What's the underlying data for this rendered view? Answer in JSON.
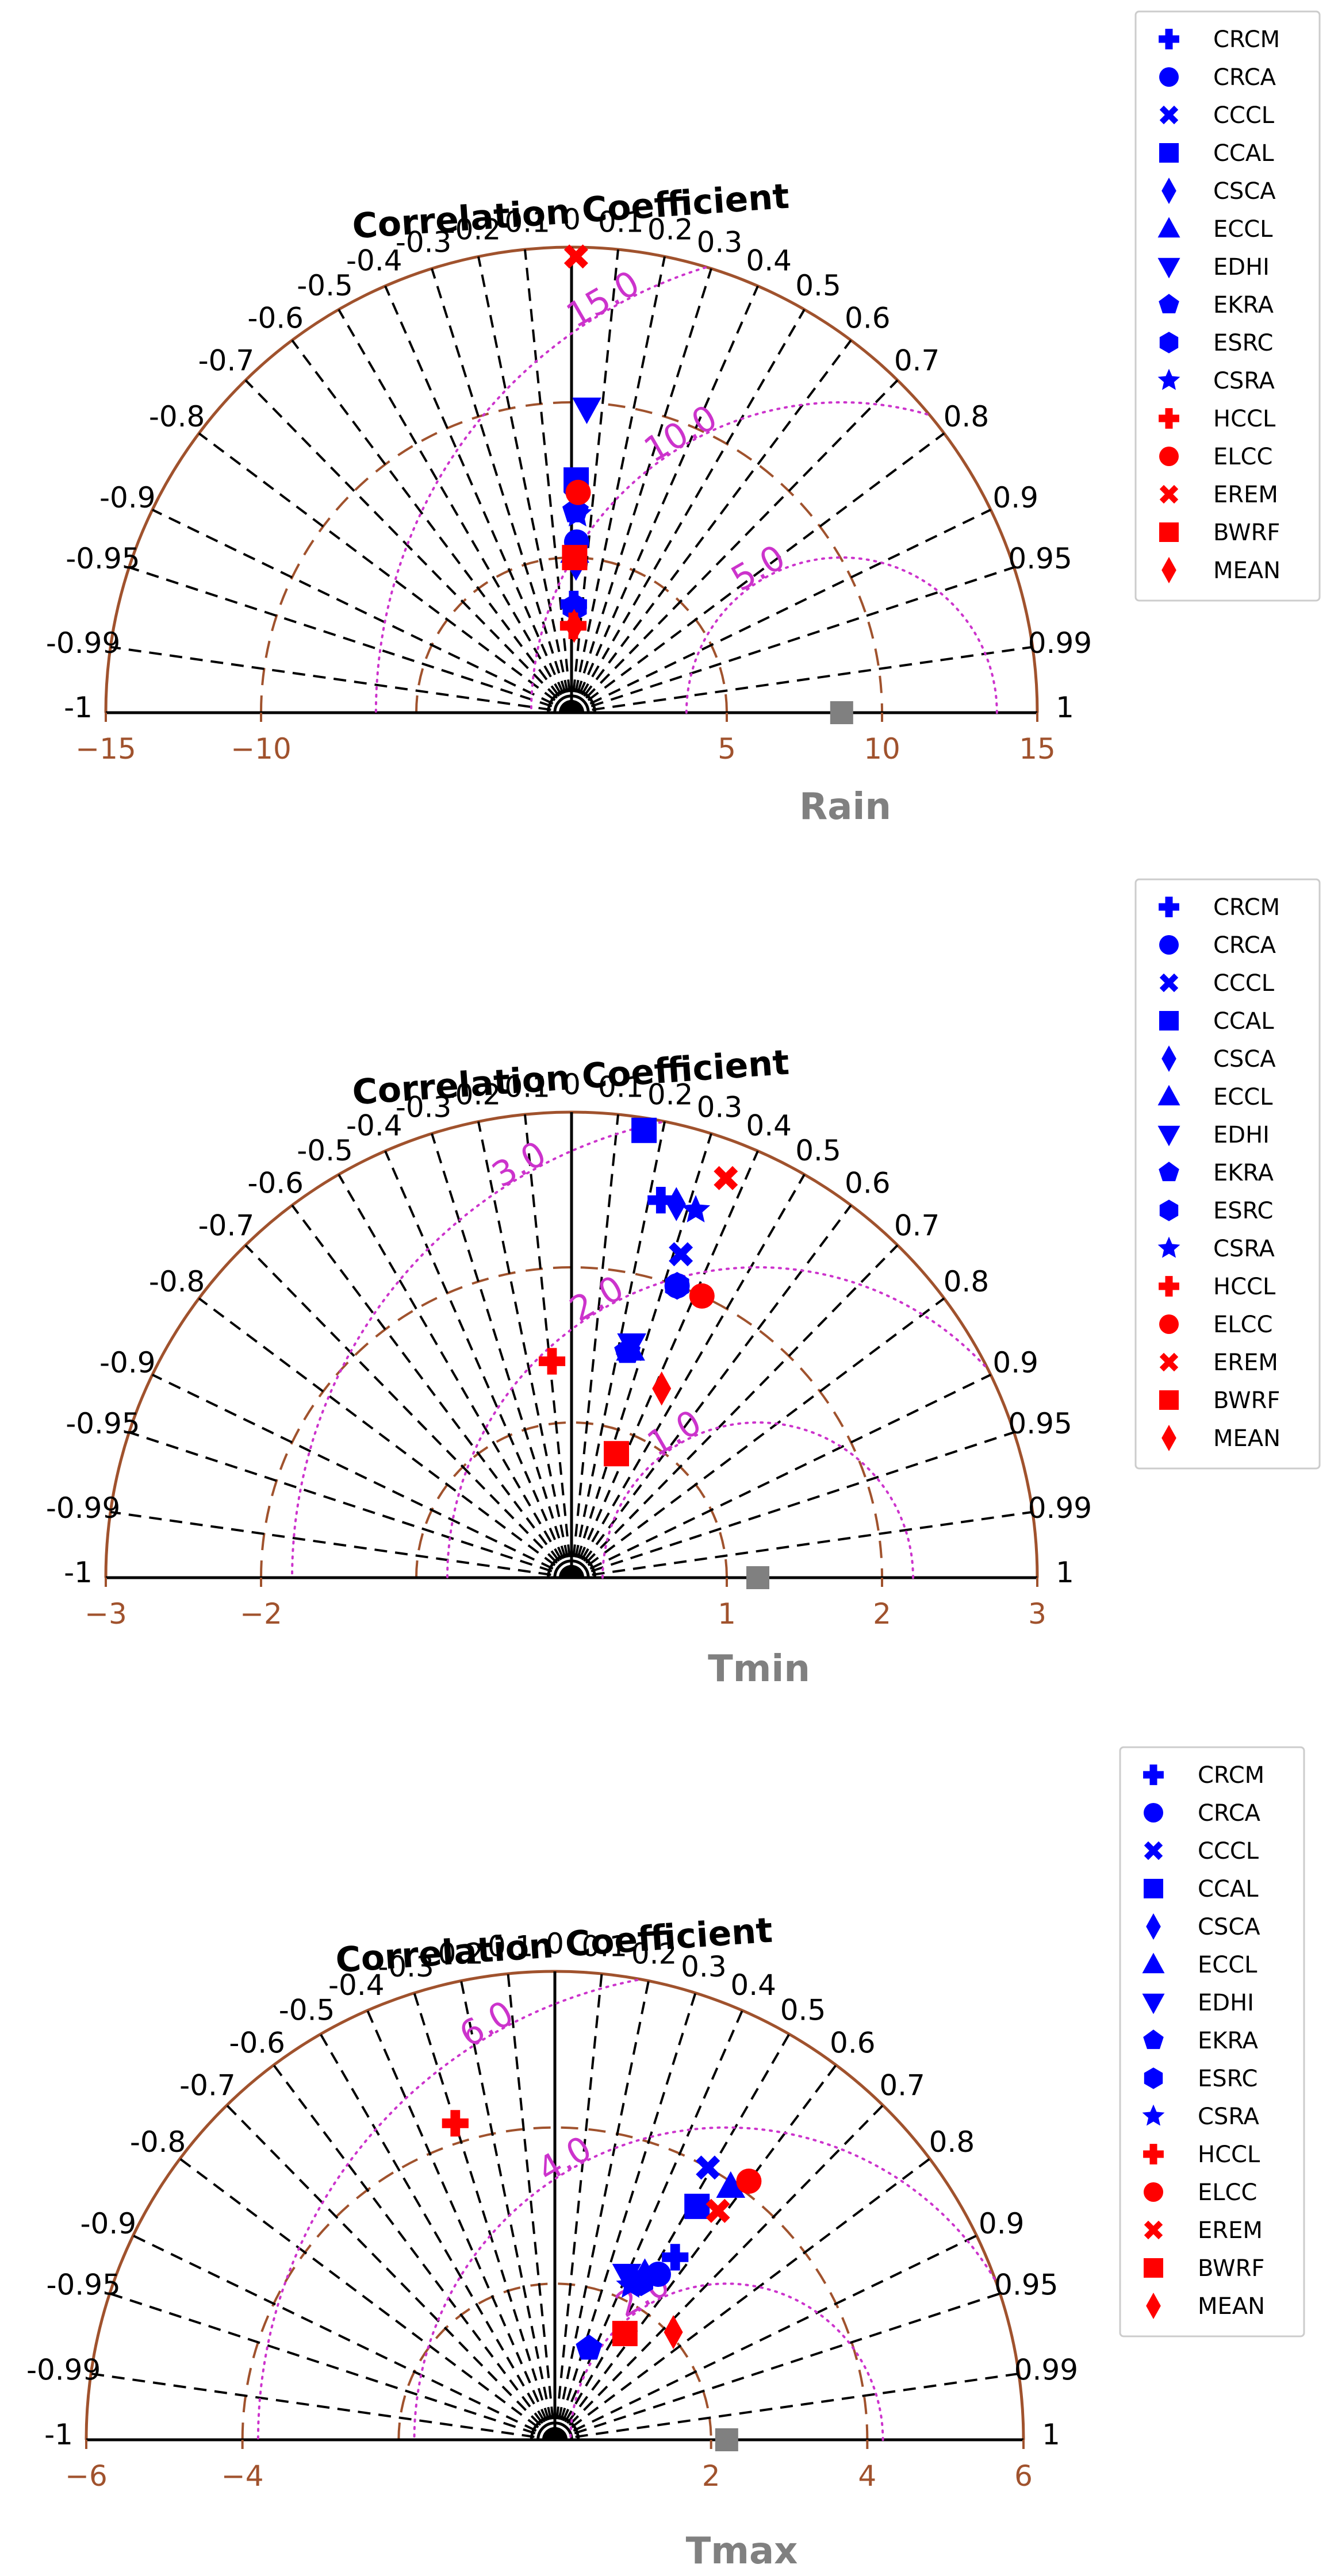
{
  "figure": {
    "corr_title": "Correlation Coefficient",
    "colors": {
      "sd_arc": "#a0522d",
      "rms": "#cc33cc",
      "spoke": "#000000",
      "reference": "#808080",
      "model": "#0000ff",
      "ensemble": "#ff0000"
    },
    "corr_ticks": [
      "0",
      "0.1",
      "0.2",
      "0.3",
      "0.4",
      "0.5",
      "0.6",
      "0.7",
      "0.8",
      "0.9",
      "0.95",
      "0.99",
      "1",
      "-0.1",
      "-0.2",
      "-0.3",
      "-0.4",
      "-0.5",
      "-0.6",
      "-0.7",
      "-0.8",
      "-0.9",
      "-0.95",
      "-0.99",
      "-1"
    ]
  },
  "chart_data": [
    {
      "type": "scatter",
      "subtype": "taylor-diagram",
      "title": "Rain",
      "sd_max": 15,
      "sd_ticks": [
        "−15",
        "−10",
        "5",
        "10",
        "15"
      ],
      "sd_tick_values": [
        -15,
        -10,
        5,
        10,
        15
      ],
      "sd_arcs": [
        5,
        10
      ],
      "reference_sd": 8.7,
      "rms_levels": [
        5,
        10,
        15
      ],
      "rms_labels": [
        "5.0",
        "10.0",
        "15.0"
      ],
      "models": [
        {
          "name": "CRCM",
          "marker": "plus",
          "color": "#0000ff",
          "corr": 0.02,
          "sd": 3.5
        },
        {
          "name": "CRCA",
          "marker": "circle",
          "color": "#0000ff",
          "corr": 0.03,
          "sd": 5.5
        },
        {
          "name": "CCCL",
          "marker": "x",
          "color": "#0000ff",
          "corr": 0.02,
          "sd": 7.3
        },
        {
          "name": "CCAL",
          "marker": "square",
          "color": "#0000ff",
          "corr": 0.02,
          "sd": 7.5
        },
        {
          "name": "CSCA",
          "marker": "diamond",
          "color": "#0000ff",
          "corr": 0.03,
          "sd": 4.8
        },
        {
          "name": "ECCL",
          "marker": "triangle-up",
          "color": "#0000ff",
          "corr": 0.02,
          "sd": 5.2
        },
        {
          "name": "EDHI",
          "marker": "triangle-down",
          "color": "#0000ff",
          "corr": 0.05,
          "sd": 9.8
        },
        {
          "name": "EKRA",
          "marker": "pentagon",
          "color": "#0000ff",
          "corr": 0.02,
          "sd": 6.5
        },
        {
          "name": "ESRC",
          "marker": "hexagon",
          "color": "#0000ff",
          "corr": 0.03,
          "sd": 3.4
        },
        {
          "name": "CSRA",
          "marker": "star",
          "color": "#0000ff",
          "corr": 0.03,
          "sd": 6.4
        },
        {
          "name": "HCCL",
          "marker": "plus",
          "color": "#ff0000",
          "corr": 0.02,
          "sd": 2.8
        },
        {
          "name": "ELCC",
          "marker": "circle",
          "color": "#ff0000",
          "corr": 0.03,
          "sd": 7.1
        },
        {
          "name": "EREM",
          "marker": "x",
          "color": "#ff0000",
          "corr": 0.01,
          "sd": 14.7
        },
        {
          "name": "BWRF",
          "marker": "square",
          "color": "#ff0000",
          "corr": 0.02,
          "sd": 5.0
        },
        {
          "name": "MEAN",
          "marker": "diamond",
          "color": "#ff0000",
          "corr": 0.03,
          "sd": 2.8
        }
      ]
    },
    {
      "type": "scatter",
      "subtype": "taylor-diagram",
      "title": "Tmin",
      "sd_max": 3,
      "sd_ticks": [
        "−3",
        "−2",
        "1",
        "2",
        "3"
      ],
      "sd_tick_values": [
        -3,
        -2,
        1,
        2,
        3
      ],
      "sd_arcs": [
        1,
        2
      ],
      "reference_sd": 1.2,
      "rms_levels": [
        1,
        2,
        3
      ],
      "rms_labels": [
        "1.0",
        "2.0",
        "3.0"
      ],
      "models": [
        {
          "name": "CRCM",
          "marker": "plus",
          "color": "#0000ff",
          "corr": 0.23,
          "sd": 2.5
        },
        {
          "name": "CRCA",
          "marker": "circle",
          "color": "#0000ff",
          "corr": 0.34,
          "sd": 2.0
        },
        {
          "name": "CCCL",
          "marker": "x",
          "color": "#0000ff",
          "corr": 0.32,
          "sd": 2.2
        },
        {
          "name": "CCAL",
          "marker": "square",
          "color": "#0000ff",
          "corr": 0.16,
          "sd": 2.92
        },
        {
          "name": "CSCA",
          "marker": "diamond",
          "color": "#0000ff",
          "corr": 0.27,
          "sd": 2.5
        },
        {
          "name": "ECCL",
          "marker": "triangle-up",
          "color": "#0000ff",
          "corr": 0.25,
          "sd": 1.52
        },
        {
          "name": "EDHI",
          "marker": "triangle-down",
          "color": "#0000ff",
          "corr": 0.25,
          "sd": 1.55
        },
        {
          "name": "EKRA",
          "marker": "pentagon",
          "color": "#0000ff",
          "corr": 0.24,
          "sd": 1.5
        },
        {
          "name": "ESRC",
          "marker": "hexagon",
          "color": "#0000ff",
          "corr": 0.34,
          "sd": 2.0
        },
        {
          "name": "CSRA",
          "marker": "star",
          "color": "#0000ff",
          "corr": 0.32,
          "sd": 2.5
        },
        {
          "name": "HCCL",
          "marker": "plus",
          "color": "#ff0000",
          "corr": -0.09,
          "sd": 1.4
        },
        {
          "name": "ELCC",
          "marker": "circle",
          "color": "#ff0000",
          "corr": 0.42,
          "sd": 2.0
        },
        {
          "name": "EREM",
          "marker": "x",
          "color": "#ff0000",
          "corr": 0.36,
          "sd": 2.76
        },
        {
          "name": "BWRF",
          "marker": "square",
          "color": "#ff0000",
          "corr": 0.34,
          "sd": 0.85
        },
        {
          "name": "MEAN",
          "marker": "diamond",
          "color": "#ff0000",
          "corr": 0.43,
          "sd": 1.35
        }
      ]
    },
    {
      "type": "scatter",
      "subtype": "taylor-diagram",
      "title": "Tmax",
      "sd_max": 6,
      "sd_ticks": [
        "−6",
        "−4",
        "2",
        "4",
        "6"
      ],
      "sd_tick_values": [
        -6,
        -4,
        2,
        4,
        6
      ],
      "sd_arcs": [
        2,
        4
      ],
      "reference_sd": 2.2,
      "rms_levels": [
        2,
        4,
        6
      ],
      "rms_labels": [
        "2.0",
        "4.0",
        "6.0"
      ],
      "models": [
        {
          "name": "CRCM",
          "marker": "plus",
          "color": "#0000ff",
          "corr": 0.55,
          "sd": 2.8
        },
        {
          "name": "CRCA",
          "marker": "circle",
          "color": "#0000ff",
          "corr": 0.53,
          "sd": 2.5
        },
        {
          "name": "CCCL",
          "marker": "x",
          "color": "#0000ff",
          "corr": 0.49,
          "sd": 4.0
        },
        {
          "name": "CCAL",
          "marker": "square",
          "color": "#0000ff",
          "corr": 0.52,
          "sd": 3.5
        },
        {
          "name": "CSCA",
          "marker": "diamond",
          "color": "#0000ff",
          "corr": 0.48,
          "sd": 2.4
        },
        {
          "name": "ECCL",
          "marker": "triangle-up",
          "color": "#0000ff",
          "corr": 0.57,
          "sd": 3.95
        },
        {
          "name": "EDHI",
          "marker": "triangle-down",
          "color": "#0000ff",
          "corr": 0.4,
          "sd": 2.3
        },
        {
          "name": "EKRA",
          "marker": "pentagon",
          "color": "#0000ff",
          "corr": 0.35,
          "sd": 1.25
        },
        {
          "name": "ESRC",
          "marker": "hexagon",
          "color": "#0000ff",
          "corr": 0.48,
          "sd": 2.3
        },
        {
          "name": "CSRA",
          "marker": "star",
          "color": "#0000ff",
          "corr": 0.44,
          "sd": 2.2
        },
        {
          "name": "HCCL",
          "marker": "plus",
          "color": "#ff0000",
          "corr": -0.3,
          "sd": 4.25
        },
        {
          "name": "ELCC",
          "marker": "circle",
          "color": "#ff0000",
          "corr": 0.6,
          "sd": 4.14
        },
        {
          "name": "EREM",
          "marker": "x",
          "color": "#ff0000",
          "corr": 0.58,
          "sd": 3.6
        },
        {
          "name": "BWRF",
          "marker": "square",
          "color": "#ff0000",
          "corr": 0.55,
          "sd": 1.63
        },
        {
          "name": "MEAN",
          "marker": "diamond",
          "color": "#ff0000",
          "corr": 0.74,
          "sd": 2.05
        }
      ]
    }
  ]
}
